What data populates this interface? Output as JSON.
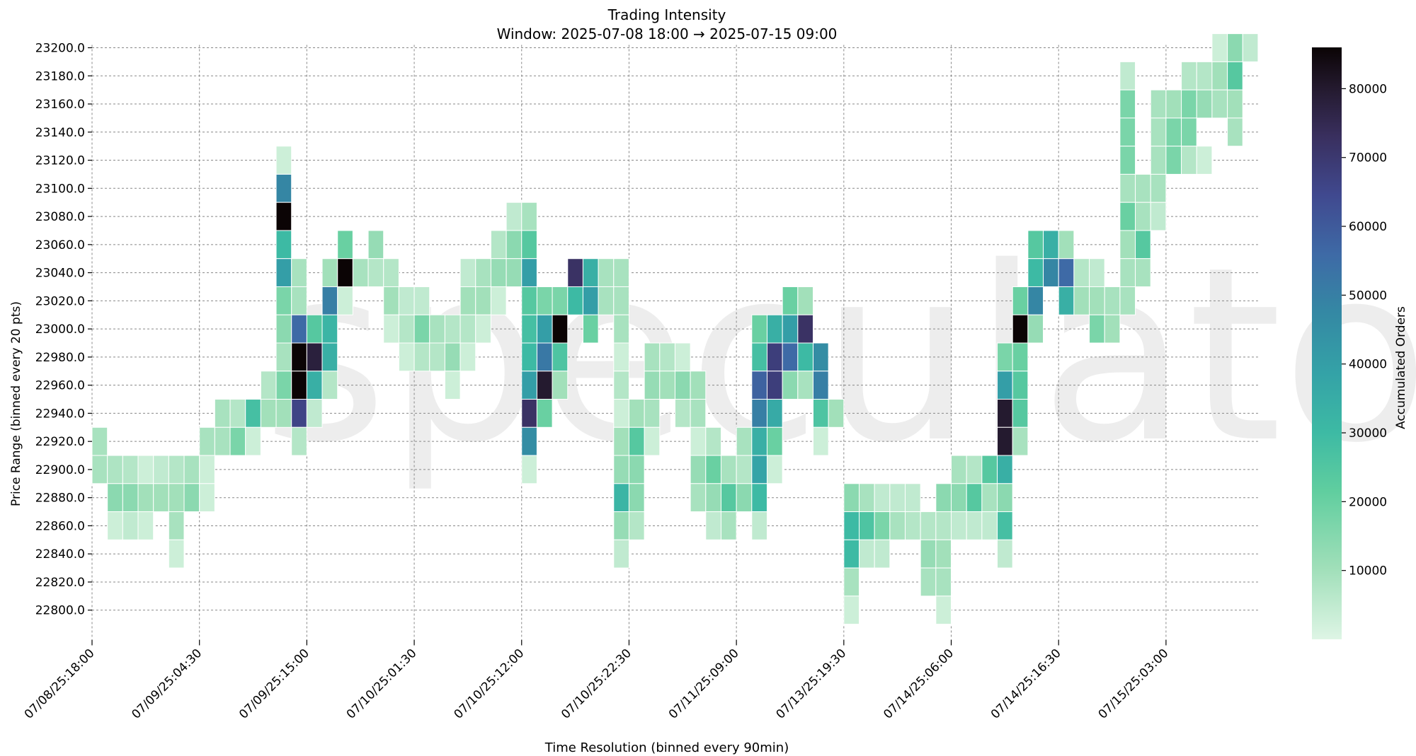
{
  "chart_data": {
    "type": "heatmap",
    "title": "Trading Intensity",
    "subtitle": "Window: 2025-07-08 18:00 → 2025-07-15 09:00",
    "xlabel": "Time Resolution (binned every 90min)",
    "ylabel": "Price Range (binned every 20 pts)",
    "colorbar_label": "Accumulated Orders",
    "watermark": "speculator",
    "x_tick_labels": [
      "07/08/25:18:00",
      "07/09/25:04:30",
      "07/09/25:15:00",
      "07/10/25:01:30",
      "07/10/25:12:00",
      "07/10/25:22:30",
      "07/11/25:09:00",
      "07/13/25:19:30",
      "07/14/25:06:00",
      "07/14/25:16:30",
      "07/15/25:03:00"
    ],
    "x_bins_per_tick": 7,
    "n_x_bins": 76,
    "y_ticks": [
      22800,
      22820,
      22840,
      22860,
      22880,
      22900,
      22920,
      22940,
      22960,
      22980,
      23000,
      23020,
      23040,
      23060,
      23080,
      23100,
      23120,
      23140,
      23160,
      23180,
      23200
    ],
    "y_tick_labels": [
      "22800.0",
      "22820.0",
      "22840.0",
      "22860.0",
      "22880.0",
      "22900.0",
      "22920.0",
      "22940.0",
      "22960.0",
      "22980.0",
      "23000.0",
      "23020.0",
      "23040.0",
      "23060.0",
      "23080.0",
      "23100.0",
      "23120.0",
      "23140.0",
      "23160.0",
      "23180.0",
      "23200.0"
    ],
    "y_bin_size": 20,
    "colorbar_ticks": [
      10000,
      20000,
      30000,
      40000,
      50000,
      60000,
      70000,
      80000
    ],
    "colorbar_tick_labels": [
      "10000",
      "20000",
      "30000",
      "40000",
      "50000",
      "60000",
      "70000",
      "80000"
    ],
    "vmin": 0,
    "vmax": 86000,
    "colormap_stops": [
      [
        0,
        "#def5e5"
      ],
      [
        0.12,
        "#a0dfb9"
      ],
      [
        0.25,
        "#60ce9f"
      ],
      [
        0.35,
        "#3dbaa4"
      ],
      [
        0.45,
        "#34a2a7"
      ],
      [
        0.55,
        "#3489a4"
      ],
      [
        0.65,
        "#3e6aa6"
      ],
      [
        0.75,
        "#40498f"
      ],
      [
        0.85,
        "#392f5e"
      ],
      [
        0.93,
        "#241a2f"
      ],
      [
        1,
        "#0b0405"
      ]
    ],
    "grid": true,
    "cells_note": "each cell is [time_bin_index, price_bin_low, accumulated_orders]",
    "cells": [
      [
        0,
        22920,
        9000
      ],
      [
        0,
        22900,
        9000
      ],
      [
        1,
        22900,
        8000
      ],
      [
        1,
        22880,
        14000
      ],
      [
        1,
        22860,
        3000
      ],
      [
        2,
        22900,
        7000
      ],
      [
        2,
        22880,
        14000
      ],
      [
        2,
        22860,
        5000
      ],
      [
        3,
        22900,
        3000
      ],
      [
        3,
        22880,
        10000
      ],
      [
        3,
        22860,
        3000
      ],
      [
        4,
        22900,
        5000
      ],
      [
        4,
        22880,
        10000
      ],
      [
        5,
        22900,
        7000
      ],
      [
        5,
        22880,
        10000
      ],
      [
        5,
        22860,
        9000
      ],
      [
        5,
        22840,
        3000
      ],
      [
        6,
        22900,
        9000
      ],
      [
        6,
        22880,
        14000
      ],
      [
        7,
        22920,
        9000
      ],
      [
        7,
        22900,
        3000
      ],
      [
        7,
        22880,
        3000
      ],
      [
        8,
        22940,
        9000
      ],
      [
        8,
        22920,
        9000
      ],
      [
        9,
        22940,
        7000
      ],
      [
        9,
        22920,
        17000
      ],
      [
        10,
        22940,
        28000
      ],
      [
        10,
        22920,
        3000
      ],
      [
        11,
        22960,
        7000
      ],
      [
        11,
        22940,
        10000
      ],
      [
        12,
        23120,
        3000
      ],
      [
        12,
        23100,
        48000
      ],
      [
        12,
        23080,
        86000
      ],
      [
        12,
        23060,
        30000
      ],
      [
        12,
        23040,
        40000
      ],
      [
        12,
        23020,
        17000
      ],
      [
        12,
        23000,
        14000
      ],
      [
        12,
        22980,
        9000
      ],
      [
        12,
        22960,
        17000
      ],
      [
        12,
        22940,
        10000
      ],
      [
        13,
        23040,
        9000
      ],
      [
        13,
        23020,
        9000
      ],
      [
        13,
        23000,
        56000
      ],
      [
        13,
        22980,
        86000
      ],
      [
        13,
        22960,
        86000
      ],
      [
        13,
        22940,
        66000
      ],
      [
        13,
        22920,
        7000
      ],
      [
        14,
        23000,
        24000
      ],
      [
        14,
        22980,
        78000
      ],
      [
        14,
        22960,
        34000
      ],
      [
        14,
        22940,
        5000
      ],
      [
        15,
        23040,
        10000
      ],
      [
        15,
        23020,
        50000
      ],
      [
        15,
        23000,
        32000
      ],
      [
        15,
        22980,
        34000
      ],
      [
        15,
        22960,
        7000
      ],
      [
        16,
        23060,
        20000
      ],
      [
        16,
        23040,
        86000
      ],
      [
        16,
        23020,
        3000
      ],
      [
        17,
        23040,
        9000
      ],
      [
        18,
        23060,
        12000
      ],
      [
        18,
        23040,
        7000
      ],
      [
        19,
        23040,
        7000
      ],
      [
        19,
        23020,
        10000
      ],
      [
        19,
        23000,
        3000
      ],
      [
        20,
        23020,
        5000
      ],
      [
        20,
        23000,
        7000
      ],
      [
        20,
        22980,
        3000
      ],
      [
        21,
        23020,
        5000
      ],
      [
        21,
        23000,
        17000
      ],
      [
        21,
        22980,
        7000
      ],
      [
        22,
        23000,
        9000
      ],
      [
        22,
        22980,
        7000
      ],
      [
        23,
        23000,
        7000
      ],
      [
        23,
        22980,
        12000
      ],
      [
        23,
        22960,
        3000
      ],
      [
        24,
        23040,
        5000
      ],
      [
        24,
        23020,
        10000
      ],
      [
        24,
        23000,
        7000
      ],
      [
        24,
        22980,
        3000
      ],
      [
        25,
        23040,
        9000
      ],
      [
        25,
        23020,
        10000
      ],
      [
        25,
        23000,
        3000
      ],
      [
        26,
        23060,
        7000
      ],
      [
        26,
        23040,
        12000
      ],
      [
        26,
        23020,
        3000
      ],
      [
        27,
        23080,
        5000
      ],
      [
        27,
        23060,
        14000
      ],
      [
        27,
        23040,
        12000
      ],
      [
        28,
        23080,
        9000
      ],
      [
        28,
        23060,
        24000
      ],
      [
        28,
        23040,
        40000
      ],
      [
        28,
        23020,
        24000
      ],
      [
        28,
        23000,
        28000
      ],
      [
        28,
        22980,
        30000
      ],
      [
        28,
        22960,
        40000
      ],
      [
        28,
        22940,
        72000
      ],
      [
        28,
        22920,
        46000
      ],
      [
        28,
        22900,
        3000
      ],
      [
        29,
        23020,
        17000
      ],
      [
        29,
        23000,
        40000
      ],
      [
        29,
        22980,
        52000
      ],
      [
        29,
        22960,
        80000
      ],
      [
        29,
        22940,
        20000
      ],
      [
        30,
        23020,
        17000
      ],
      [
        30,
        23000,
        86000
      ],
      [
        30,
        22980,
        26000
      ],
      [
        30,
        22960,
        10000
      ],
      [
        31,
        23040,
        72000
      ],
      [
        31,
        23020,
        30000
      ],
      [
        32,
        23040,
        34000
      ],
      [
        32,
        23020,
        40000
      ],
      [
        32,
        23000,
        20000
      ],
      [
        33,
        23040,
        9000
      ],
      [
        33,
        23020,
        9000
      ],
      [
        34,
        23040,
        9000
      ],
      [
        34,
        23020,
        9000
      ],
      [
        34,
        23000,
        9000
      ],
      [
        34,
        22980,
        3000
      ],
      [
        34,
        22960,
        7000
      ],
      [
        34,
        22940,
        3000
      ],
      [
        34,
        22920,
        10000
      ],
      [
        34,
        22900,
        12000
      ],
      [
        34,
        22880,
        32000
      ],
      [
        34,
        22860,
        12000
      ],
      [
        34,
        22840,
        5000
      ],
      [
        35,
        22940,
        10000
      ],
      [
        35,
        22920,
        24000
      ],
      [
        35,
        22900,
        14000
      ],
      [
        35,
        22880,
        14000
      ],
      [
        35,
        22860,
        7000
      ],
      [
        36,
        22980,
        9000
      ],
      [
        36,
        22960,
        12000
      ],
      [
        36,
        22940,
        9000
      ],
      [
        36,
        22920,
        3000
      ],
      [
        37,
        22980,
        7000
      ],
      [
        37,
        22960,
        10000
      ],
      [
        38,
        22980,
        3000
      ],
      [
        38,
        22960,
        14000
      ],
      [
        38,
        22940,
        7000
      ],
      [
        39,
        22960,
        10000
      ],
      [
        39,
        22940,
        9000
      ],
      [
        39,
        22920,
        3000
      ],
      [
        39,
        22900,
        12000
      ],
      [
        39,
        22880,
        9000
      ],
      [
        40,
        22920,
        7000
      ],
      [
        40,
        22900,
        20000
      ],
      [
        40,
        22880,
        12000
      ],
      [
        40,
        22860,
        5000
      ],
      [
        41,
        22900,
        9000
      ],
      [
        41,
        22880,
        24000
      ],
      [
        41,
        22860,
        9000
      ],
      [
        42,
        22920,
        9000
      ],
      [
        42,
        22900,
        7000
      ],
      [
        42,
        22880,
        14000
      ],
      [
        43,
        23000,
        20000
      ],
      [
        43,
        22980,
        28000
      ],
      [
        43,
        22960,
        58000
      ],
      [
        43,
        22940,
        50000
      ],
      [
        43,
        22920,
        34000
      ],
      [
        43,
        22900,
        38000
      ],
      [
        43,
        22880,
        30000
      ],
      [
        43,
        22860,
        5000
      ],
      [
        44,
        23000,
        34000
      ],
      [
        44,
        22980,
        68000
      ],
      [
        44,
        22960,
        68000
      ],
      [
        44,
        22940,
        36000
      ],
      [
        44,
        22920,
        20000
      ],
      [
        44,
        22900,
        3000
      ],
      [
        45,
        23020,
        20000
      ],
      [
        45,
        23000,
        40000
      ],
      [
        45,
        22980,
        56000
      ],
      [
        45,
        22960,
        14000
      ],
      [
        46,
        23020,
        10000
      ],
      [
        46,
        23000,
        72000
      ],
      [
        46,
        22980,
        30000
      ],
      [
        46,
        22960,
        9000
      ],
      [
        47,
        22980,
        46000
      ],
      [
        47,
        22960,
        50000
      ],
      [
        47,
        22940,
        26000
      ],
      [
        47,
        22920,
        3000
      ],
      [
        48,
        22940,
        10000
      ],
      [
        49,
        22880,
        14000
      ],
      [
        49,
        22860,
        30000
      ],
      [
        49,
        22840,
        30000
      ],
      [
        49,
        22820,
        9000
      ],
      [
        49,
        22800,
        3000
      ],
      [
        50,
        22880,
        9000
      ],
      [
        50,
        22860,
        26000
      ],
      [
        50,
        22840,
        5000
      ],
      [
        51,
        22880,
        5000
      ],
      [
        51,
        22860,
        17000
      ],
      [
        51,
        22840,
        5000
      ],
      [
        52,
        22880,
        5000
      ],
      [
        52,
        22860,
        9000
      ],
      [
        53,
        22880,
        5000
      ],
      [
        53,
        22860,
        7000
      ],
      [
        54,
        22860,
        7000
      ],
      [
        54,
        22840,
        12000
      ],
      [
        54,
        22820,
        9000
      ],
      [
        55,
        22880,
        14000
      ],
      [
        55,
        22860,
        7000
      ],
      [
        55,
        22840,
        10000
      ],
      [
        55,
        22820,
        9000
      ],
      [
        55,
        22800,
        3000
      ],
      [
        56,
        22900,
        9000
      ],
      [
        56,
        22880,
        14000
      ],
      [
        56,
        22860,
        5000
      ],
      [
        57,
        22900,
        7000
      ],
      [
        57,
        22880,
        24000
      ],
      [
        57,
        22860,
        5000
      ],
      [
        58,
        22900,
        24000
      ],
      [
        58,
        22880,
        9000
      ],
      [
        58,
        22860,
        5000
      ],
      [
        59,
        22980,
        17000
      ],
      [
        59,
        22960,
        40000
      ],
      [
        59,
        22940,
        80000
      ],
      [
        59,
        22920,
        80000
      ],
      [
        59,
        22900,
        34000
      ],
      [
        59,
        22880,
        14000
      ],
      [
        59,
        22860,
        28000
      ],
      [
        59,
        22840,
        5000
      ],
      [
        60,
        23020,
        20000
      ],
      [
        60,
        23000,
        86000
      ],
      [
        60,
        22980,
        20000
      ],
      [
        60,
        22960,
        24000
      ],
      [
        60,
        22940,
        24000
      ],
      [
        60,
        22920,
        9000
      ],
      [
        61,
        23060,
        24000
      ],
      [
        61,
        23040,
        30000
      ],
      [
        61,
        23020,
        48000
      ],
      [
        61,
        23000,
        12000
      ],
      [
        62,
        23060,
        34000
      ],
      [
        62,
        23040,
        48000
      ],
      [
        63,
        23060,
        10000
      ],
      [
        63,
        23040,
        56000
      ],
      [
        63,
        23020,
        34000
      ],
      [
        64,
        23040,
        7000
      ],
      [
        64,
        23020,
        10000
      ],
      [
        65,
        23040,
        5000
      ],
      [
        65,
        23020,
        10000
      ],
      [
        65,
        23000,
        17000
      ],
      [
        66,
        23020,
        9000
      ],
      [
        66,
        23000,
        10000
      ],
      [
        67,
        23180,
        5000
      ],
      [
        67,
        23160,
        17000
      ],
      [
        67,
        23140,
        17000
      ],
      [
        67,
        23120,
        17000
      ],
      [
        67,
        23100,
        9000
      ],
      [
        67,
        23080,
        20000
      ],
      [
        67,
        23060,
        10000
      ],
      [
        67,
        23040,
        9000
      ],
      [
        67,
        23020,
        9000
      ],
      [
        68,
        23100,
        9000
      ],
      [
        68,
        23080,
        9000
      ],
      [
        68,
        23060,
        24000
      ],
      [
        68,
        23040,
        9000
      ],
      [
        69,
        23160,
        9000
      ],
      [
        69,
        23140,
        9000
      ],
      [
        69,
        23120,
        9000
      ],
      [
        69,
        23100,
        9000
      ],
      [
        69,
        23080,
        5000
      ],
      [
        70,
        23160,
        10000
      ],
      [
        70,
        23140,
        17000
      ],
      [
        70,
        23120,
        17000
      ],
      [
        71,
        23180,
        7000
      ],
      [
        71,
        23160,
        17000
      ],
      [
        71,
        23140,
        17000
      ],
      [
        71,
        23120,
        7000
      ],
      [
        72,
        23180,
        7000
      ],
      [
        72,
        23160,
        12000
      ],
      [
        72,
        23120,
        3000
      ],
      [
        73,
        23200,
        3000
      ],
      [
        73,
        23180,
        10000
      ],
      [
        73,
        23160,
        9000
      ],
      [
        74,
        23200,
        14000
      ],
      [
        74,
        23180,
        24000
      ],
      [
        74,
        23160,
        10000
      ],
      [
        74,
        23140,
        9000
      ],
      [
        75,
        23200,
        5000
      ]
    ]
  }
}
